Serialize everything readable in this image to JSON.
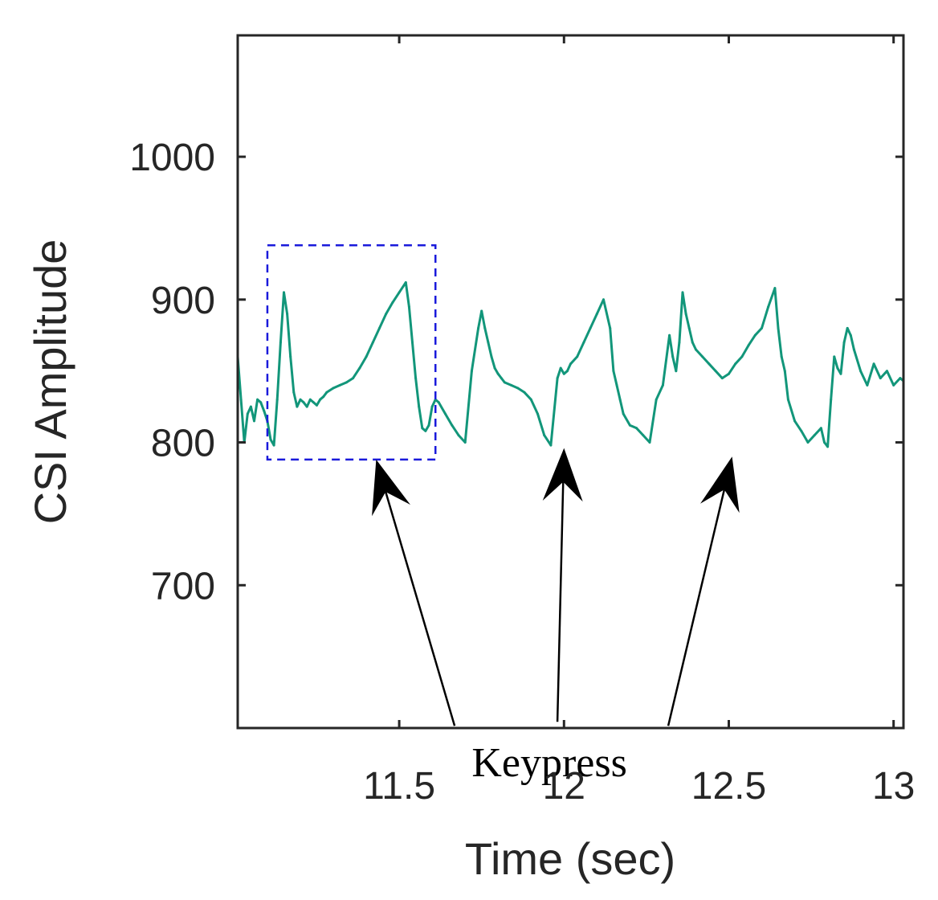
{
  "chart_data": {
    "type": "line",
    "title": "",
    "xlabel": "Time (sec)",
    "ylabel": "CSI Amplitude",
    "xlim": [
      11.01,
      13.03
    ],
    "ylim": [
      600,
      1085
    ],
    "xticks": [
      11.5,
      12,
      12.5,
      13
    ],
    "xtick_labels": [
      "11.5",
      "12",
      "12.5",
      "13"
    ],
    "yticks": [
      700,
      800,
      900,
      1000
    ],
    "ytick_labels": [
      "700",
      "800",
      "900",
      "1000"
    ],
    "grid": false,
    "series": [
      {
        "name": "CSI",
        "color": "#12967a",
        "x": [
          11.01,
          11.02,
          11.03,
          11.04,
          11.05,
          11.06,
          11.07,
          11.08,
          11.09,
          11.1,
          11.11,
          11.12,
          11.13,
          11.14,
          11.15,
          11.16,
          11.17,
          11.18,
          11.19,
          11.2,
          11.21,
          11.22,
          11.23,
          11.24,
          11.25,
          11.26,
          11.27,
          11.28,
          11.3,
          11.32,
          11.34,
          11.36,
          11.38,
          11.4,
          11.42,
          11.44,
          11.46,
          11.48,
          11.5,
          11.52,
          11.53,
          11.54,
          11.55,
          11.56,
          11.57,
          11.58,
          11.59,
          11.6,
          11.61,
          11.62,
          11.64,
          11.66,
          11.68,
          11.7,
          11.72,
          11.74,
          11.75,
          11.76,
          11.77,
          11.78,
          11.79,
          11.8,
          11.81,
          11.82,
          11.84,
          11.86,
          11.88,
          11.9,
          11.92,
          11.94,
          11.96,
          11.98,
          11.99,
          12.0,
          12.01,
          12.02,
          12.04,
          12.06,
          12.08,
          12.1,
          12.12,
          12.14,
          12.15,
          12.16,
          12.17,
          12.18,
          12.2,
          12.22,
          12.24,
          12.26,
          12.28,
          12.3,
          12.32,
          12.33,
          12.34,
          12.35,
          12.36,
          12.37,
          12.38,
          12.39,
          12.4,
          12.42,
          12.44,
          12.46,
          12.48,
          12.5,
          12.52,
          12.54,
          12.56,
          12.58,
          12.6,
          12.62,
          12.64,
          12.65,
          12.66,
          12.67,
          12.68,
          12.7,
          12.72,
          12.74,
          12.76,
          12.78,
          12.79,
          12.8,
          12.81,
          12.82,
          12.83,
          12.84,
          12.85,
          12.86,
          12.87,
          12.88,
          12.9,
          12.92,
          12.94,
          12.96,
          12.98,
          13.0,
          13.02,
          13.03
        ],
        "y": [
          860,
          830,
          800,
          820,
          825,
          815,
          830,
          828,
          822,
          815,
          802,
          798,
          830,
          870,
          905,
          890,
          860,
          835,
          825,
          830,
          828,
          825,
          830,
          828,
          826,
          830,
          832,
          835,
          838,
          840,
          842,
          845,
          852,
          860,
          870,
          880,
          890,
          898,
          905,
          912,
          895,
          870,
          845,
          825,
          810,
          808,
          812,
          825,
          830,
          828,
          820,
          812,
          805,
          800,
          850,
          880,
          892,
          880,
          870,
          860,
          852,
          848,
          845,
          842,
          840,
          838,
          835,
          830,
          820,
          805,
          798,
          845,
          852,
          848,
          850,
          855,
          860,
          870,
          880,
          890,
          900,
          880,
          850,
          840,
          830,
          820,
          812,
          810,
          805,
          800,
          830,
          840,
          875,
          860,
          850,
          870,
          905,
          890,
          880,
          870,
          865,
          860,
          855,
          850,
          845,
          848,
          855,
          860,
          868,
          875,
          880,
          895,
          908,
          880,
          860,
          850,
          830,
          815,
          808,
          800,
          805,
          810,
          800,
          797,
          830,
          860,
          852,
          848,
          870,
          880,
          875,
          865,
          850,
          840,
          855,
          845,
          850,
          840,
          845,
          843
        ]
      }
    ],
    "highlight_box": {
      "x_range": [
        11.1,
        11.61
      ],
      "y_range": [
        788,
        938
      ],
      "color": "#1a1adb",
      "style": "dashed"
    },
    "annotations": [
      {
        "text": "Keypress",
        "x": 11.98,
        "y": 655,
        "arrow_targets": [
          {
            "x": 11.43,
            "y": 788
          },
          {
            "x": 12.0,
            "y": 796
          },
          {
            "x": 12.51,
            "y": 790
          }
        ]
      }
    ]
  }
}
